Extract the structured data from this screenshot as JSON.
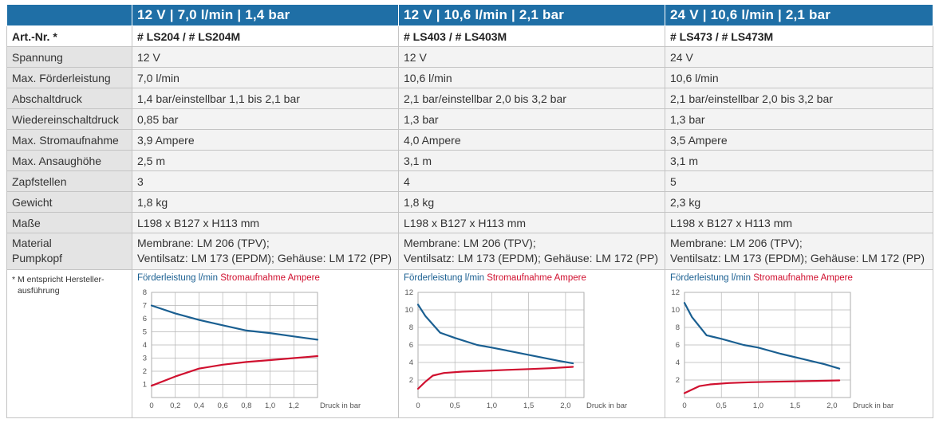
{
  "header": {
    "columns": [
      "",
      "12 V | 7,0 l/min | 1,4 bar",
      "12 V | 10,6 l/min | 2,1 bar",
      "24 V | 10,6 l/min | 2,1 bar"
    ]
  },
  "art": {
    "label": "Art.-Nr. *",
    "values": [
      "# LS204 / # LS204M",
      "# LS403 / # LS403M",
      "# LS473 / # LS473M"
    ]
  },
  "rows": [
    {
      "label": "Spannung",
      "values": [
        "12 V",
        "12 V",
        "24 V"
      ]
    },
    {
      "label": "Max. Förderleistung",
      "values": [
        "7,0 l/min",
        "10,6 l/min",
        "10,6 l/min"
      ]
    },
    {
      "label": "Abschaltdruck",
      "values": [
        "1,4 bar/einstellbar 1,1 bis 2,1 bar",
        "2,1 bar/einstellbar 2,0 bis 3,2 bar",
        "2,1 bar/einstellbar 2,0 bis 3,2 bar"
      ]
    },
    {
      "label": "Wiedereinschaltdruck",
      "values": [
        "0,85 bar",
        "1,3 bar",
        "1,3 bar"
      ]
    },
    {
      "label": "Max. Stromaufnahme",
      "values": [
        "3,9 Ampere",
        "4,0 Ampere",
        "3,5 Ampere"
      ]
    },
    {
      "label": "Max. Ansaughöhe",
      "values": [
        "2,5 m",
        "3,1 m",
        "3,1 m"
      ]
    },
    {
      "label": "Zapfstellen",
      "values": [
        "3",
        "4",
        "5"
      ]
    },
    {
      "label": "Gewicht",
      "values": [
        "1,8 kg",
        "1,8 kg",
        "2,3 kg"
      ]
    },
    {
      "label": "Maße",
      "values": [
        "L198 x B127 x H113 mm",
        "L198 x B127 x H113 mm",
        "L198 x B127 x H113 mm"
      ]
    }
  ],
  "material": {
    "label_line1": "Material",
    "label_line2": "Pumpkopf",
    "line1": [
      "Membrane: LM 206 (TPV);",
      "Membrane: LM 206 (TPV);",
      "Membrane: LM 206 (TPV);"
    ],
    "line2": [
      "Ventilsatz: LM 173 (EPDM); Gehäuse: LM 172 (PP)",
      "Ventilsatz: LM 173 (EPDM); Gehäuse: LM 172 (PP)",
      "Ventilsatz: LM 173 (EPDM); Gehäuse: LM 172 (PP)"
    ]
  },
  "footnote": {
    "line1": "* M entspricht Hersteller-",
    "line2": "ausführung"
  },
  "colors": {
    "header_bg": "#1f6fa6",
    "flow": "#1a5f91",
    "current": "#d0102f"
  },
  "chart_data": [
    {
      "type": "line",
      "legend": [
        "Förderleistung l/min",
        "Stromaufnahme Ampere"
      ],
      "xlabel": "Druck in bar",
      "xlim": [
        0,
        1.4
      ],
      "ylim": [
        0,
        8
      ],
      "xticks": [
        0,
        0.2,
        0.4,
        0.6,
        0.8,
        1.0,
        1.2
      ],
      "xtick_labels": [
        "0",
        "0,2",
        "0,4",
        "0,6",
        "0,8",
        "1,0",
        "1,2"
      ],
      "yticks": [
        1,
        2,
        3,
        4,
        5,
        6,
        7,
        8
      ],
      "ytick_labels": [
        "1",
        "2",
        "3",
        "4",
        "5",
        "6",
        "7",
        "8"
      ],
      "series": [
        {
          "name": "Förderleistung l/min",
          "color": "#1a5f91",
          "x": [
            0,
            0.2,
            0.4,
            0.6,
            0.8,
            1.0,
            1.2,
            1.4
          ],
          "y": [
            7.0,
            6.4,
            5.9,
            5.5,
            5.1,
            4.9,
            4.65,
            4.4
          ]
        },
        {
          "name": "Stromaufnahme Ampere",
          "color": "#d0102f",
          "x": [
            0,
            0.2,
            0.4,
            0.6,
            0.8,
            1.0,
            1.2,
            1.4
          ],
          "y": [
            0.9,
            1.6,
            2.2,
            2.5,
            2.7,
            2.85,
            3.0,
            3.15
          ]
        }
      ]
    },
    {
      "type": "line",
      "legend": [
        "Förderleistung l/min",
        "Stromaufnahme Ampere"
      ],
      "xlabel": "Druck in bar",
      "xlim": [
        0,
        2.25
      ],
      "ylim": [
        0,
        12
      ],
      "xticks": [
        0,
        0.5,
        1.0,
        1.5,
        2.0
      ],
      "xtick_labels": [
        "0",
        "0,5",
        "1,0",
        "1,5",
        "2,0"
      ],
      "yticks": [
        2,
        4,
        6,
        8,
        10,
        12
      ],
      "ytick_labels": [
        "2",
        "4",
        "6",
        "8",
        "10",
        "12"
      ],
      "series": [
        {
          "name": "Förderleistung l/min",
          "color": "#1a5f91",
          "x": [
            0,
            0.1,
            0.3,
            0.5,
            0.8,
            1.0,
            1.3,
            1.6,
            1.9,
            2.1
          ],
          "y": [
            10.6,
            9.3,
            7.4,
            6.8,
            6.0,
            5.7,
            5.2,
            4.7,
            4.2,
            3.9
          ]
        },
        {
          "name": "Stromaufnahme Ampere",
          "color": "#d0102f",
          "x": [
            0,
            0.1,
            0.2,
            0.35,
            0.6,
            0.9,
            1.2,
            1.5,
            1.8,
            2.1
          ],
          "y": [
            1.0,
            1.8,
            2.5,
            2.8,
            2.95,
            3.05,
            3.15,
            3.25,
            3.35,
            3.5
          ]
        }
      ]
    },
    {
      "type": "line",
      "legend": [
        "Förderleistung l/min",
        "Stromaufnahme Ampere"
      ],
      "xlabel": "Druck in bar",
      "xlim": [
        0,
        2.25
      ],
      "ylim": [
        0,
        12
      ],
      "xticks": [
        0,
        0.5,
        1.0,
        1.5,
        2.0
      ],
      "xtick_labels": [
        "0",
        "0,5",
        "1,0",
        "1,5",
        "2,0"
      ],
      "yticks": [
        2,
        4,
        6,
        8,
        10,
        12
      ],
      "ytick_labels": [
        "2",
        "4",
        "6",
        "8",
        "10",
        "12"
      ],
      "series": [
        {
          "name": "Förderleistung l/min",
          "color": "#1a5f91",
          "x": [
            0,
            0.1,
            0.3,
            0.5,
            0.8,
            1.0,
            1.3,
            1.6,
            1.9,
            2.1
          ],
          "y": [
            10.8,
            9.2,
            7.1,
            6.7,
            6.0,
            5.7,
            5.0,
            4.4,
            3.8,
            3.3
          ]
        },
        {
          "name": "Stromaufnahme Ampere",
          "color": "#d0102f",
          "x": [
            0,
            0.1,
            0.2,
            0.35,
            0.6,
            0.9,
            1.2,
            1.5,
            1.8,
            2.1
          ],
          "y": [
            0.5,
            0.9,
            1.3,
            1.5,
            1.65,
            1.75,
            1.8,
            1.85,
            1.9,
            1.95
          ]
        }
      ]
    }
  ]
}
